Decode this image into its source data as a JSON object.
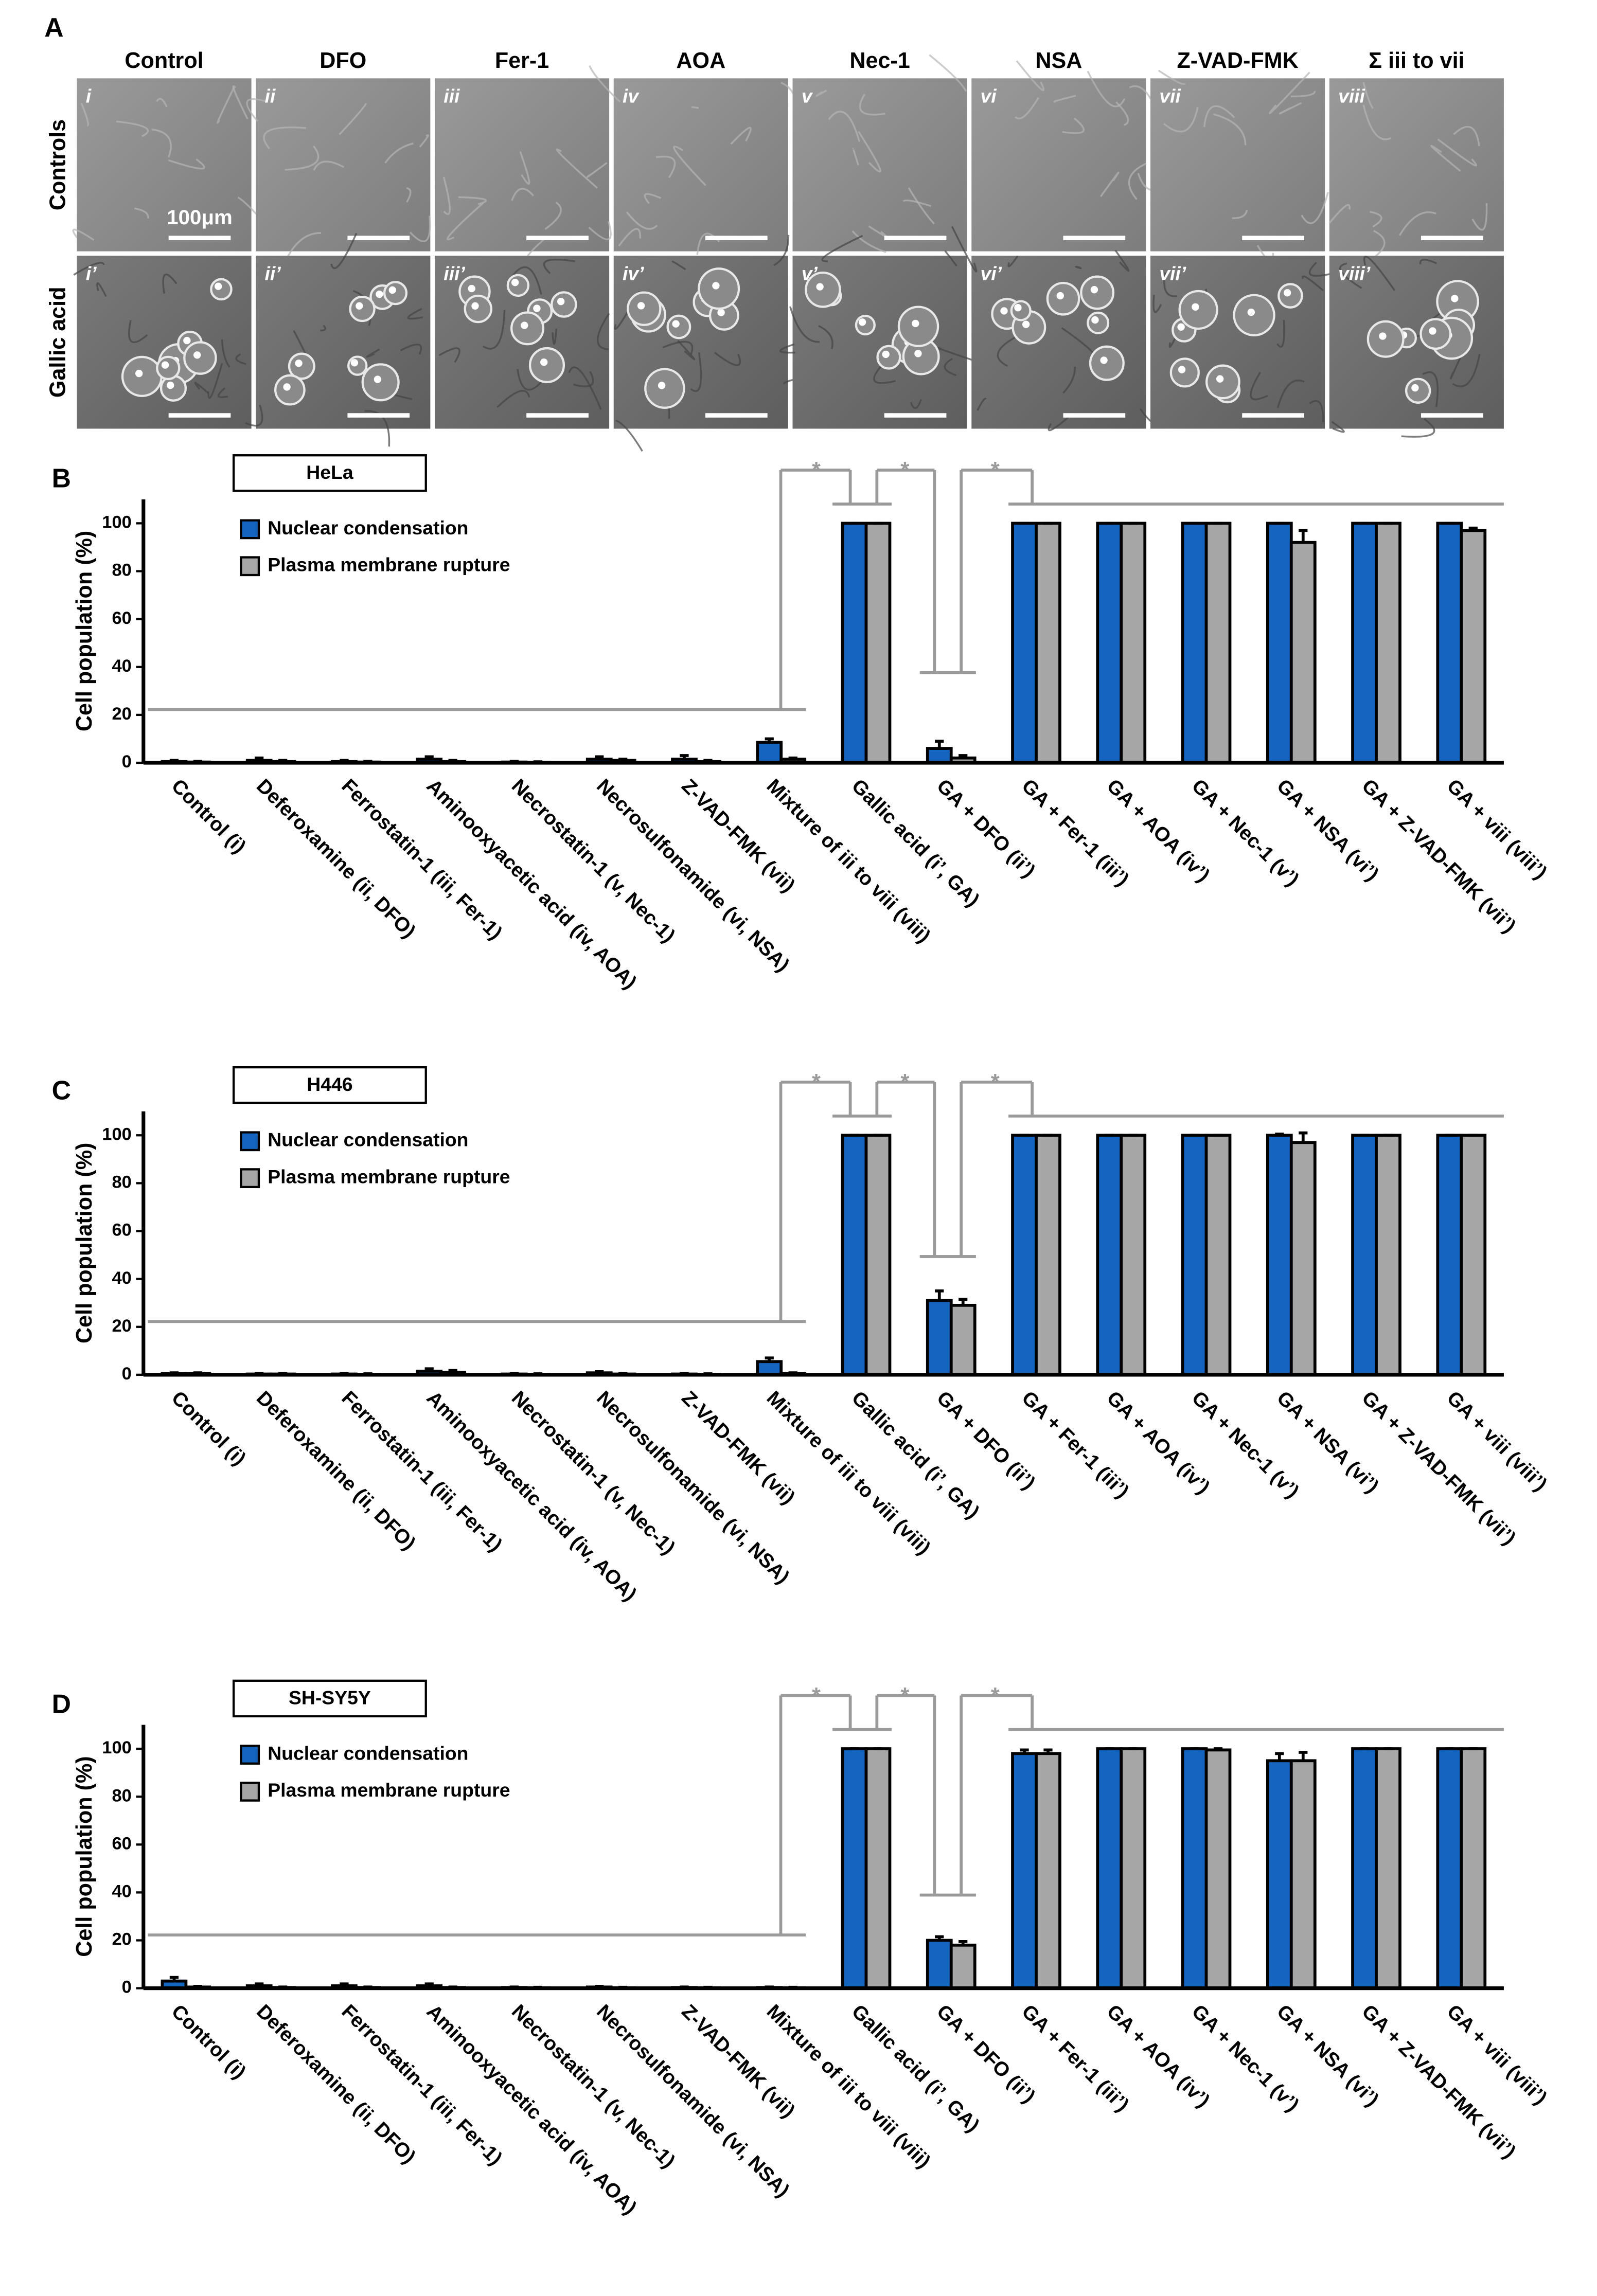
{
  "panel_a": {
    "label": "A",
    "columns": [
      "Control",
      "DFO",
      "Fer-1",
      "AOA",
      "Nec-1",
      "NSA",
      "Z-VAD-FMK",
      "Σ iii to vii"
    ],
    "rows": [
      "Controls",
      "Gallic acid"
    ],
    "cells": [
      [
        "i",
        "ii",
        "iii",
        "iv",
        "v",
        "vi",
        "vii",
        "viii"
      ],
      [
        "i’",
        "ii’",
        "iii’",
        "iv’",
        "v’",
        "vi’",
        "vii’",
        "viii’"
      ]
    ],
    "scale_bar": "100μm"
  },
  "chart_data": [
    {
      "type": "bar",
      "panel": "B",
      "title": "HeLa",
      "ylabel": "Cell population (%)",
      "categories": [
        "Control (i)",
        "Deferoxamine (ii, DFO)",
        "Ferrostatin-1 (iii, Fer-1)",
        "Aminooxyacetic acid (iv, AOA)",
        "Necrostatin-1 (v, Nec-1)",
        "Necrosulfonamide (vi, NSA)",
        "Z-VAD-FMK (vii)",
        "Mixture of iii to viii (viii)",
        "Gallic acid (i’, GA)",
        "GA + DFO (ii’)",
        "GA + Fer-1 (iii’)",
        "GA + AOA (iv’)",
        "GA + Nec-1 (v’)",
        "GA + NSA (vi’)",
        "GA + Z-VAD-FMK (vii’)",
        "GA + viii (viii’)"
      ],
      "series": [
        {
          "name": "Nuclear condensation",
          "color": "#1565c0",
          "values": [
            0.5,
            1,
            0.5,
            1.5,
            0.3,
            1.5,
            1.5,
            8.5,
            100,
            6,
            100,
            100,
            100,
            100,
            100,
            100
          ],
          "errors": [
            0.5,
            1,
            0.5,
            1,
            0.3,
            1,
            1.5,
            1.5,
            0,
            3,
            0,
            0,
            0,
            0,
            0,
            0
          ]
        },
        {
          "name": "Plasma membrane rupture",
          "color": "#a6a6a6",
          "values": [
            0.3,
            0.5,
            0.3,
            0.5,
            0.2,
            1,
            0.5,
            1.5,
            100,
            2,
            100,
            100,
            100,
            92,
            100,
            97
          ],
          "errors": [
            0.3,
            0.5,
            0.3,
            0.5,
            0.2,
            0.5,
            0.5,
            0.5,
            0,
            1,
            0,
            0,
            0,
            5,
            0,
            1
          ]
        }
      ],
      "ylim": [
        0,
        110
      ],
      "yticks": [
        0,
        20,
        40,
        60,
        80,
        100
      ],
      "legend": "upper left",
      "significance": [
        "*",
        "*",
        "*"
      ]
    },
    {
      "type": "bar",
      "panel": "C",
      "title": "H446",
      "ylabel": "Cell population (%)",
      "categories": [
        "Control (i)",
        "Deferoxamine (ii, DFO)",
        "Ferrostatin-1 (iii, Fer-1)",
        "Aminooxyacetic acid (iv, AOA)",
        "Necrostatin-1 (v, Nec-1)",
        "Necrosulfonamide (vi, NSA)",
        "Z-VAD-FMK (vii)",
        "Mixture of iii to viii (viii)",
        "Gallic acid (i’, GA)",
        "GA + DFO (ii’)",
        "GA + Fer-1 (iii’)",
        "GA + AOA (iv’)",
        "GA + Nec-1 (v’)",
        "GA + NSA (vi’)",
        "GA + Z-VAD-FMK (vii’)",
        "GA + viii (viii’)"
      ],
      "series": [
        {
          "name": "Nuclear condensation",
          "color": "#1565c0",
          "values": [
            0.5,
            0.3,
            0.3,
            1.5,
            0.3,
            0.8,
            0.3,
            5.5,
            100,
            31,
            100,
            100,
            100,
            100,
            100,
            100
          ],
          "errors": [
            0.3,
            0.2,
            0.2,
            1,
            0.2,
            0.5,
            0.2,
            1.5,
            0,
            4,
            0,
            0,
            0,
            0.5,
            0,
            0
          ]
        },
        {
          "name": "Plasma membrane rupture",
          "color": "#a6a6a6",
          "values": [
            0.5,
            0.3,
            0.2,
            1,
            0.2,
            0.3,
            0.2,
            0.5,
            100,
            29,
            100,
            100,
            100,
            97,
            100,
            100
          ],
          "errors": [
            0.3,
            0.2,
            0.2,
            0.8,
            0.2,
            0.2,
            0.2,
            0.3,
            0,
            2.5,
            0,
            0,
            0,
            4,
            0,
            0
          ]
        }
      ],
      "ylim": [
        0,
        110
      ],
      "yticks": [
        0,
        20,
        40,
        60,
        80,
        100
      ],
      "legend": "upper left",
      "significance": [
        "*",
        "*",
        "*"
      ]
    },
    {
      "type": "bar",
      "panel": "D",
      "title": "SH-SY5Y",
      "ylabel": "Cell population (%)",
      "categories": [
        "Control (i)",
        "Deferoxamine (ii, DFO)",
        "Ferrostatin-1 (iii, Fer-1)",
        "Aminooxyacetic acid (iv, AOA)",
        "Necrostatin-1 (v, Nec-1)",
        "Necrosulfonamide (vi, NSA)",
        "Z-VAD-FMK (vii)",
        "Mixture of iii to viii (viii)",
        "Gallic acid (i’, GA)",
        "GA + DFO (ii’)",
        "GA + Fer-1 (iii’)",
        "GA + AOA (iv’)",
        "GA + Nec-1 (v’)",
        "GA + NSA (vi’)",
        "GA + Z-VAD-FMK (vii’)",
        "GA + viii (viii’)"
      ],
      "series": [
        {
          "name": "Nuclear condensation",
          "color": "#1565c0",
          "values": [
            3,
            1,
            1,
            1,
            0.3,
            0.5,
            0.3,
            0.3,
            100,
            20,
            98,
            100,
            100,
            95,
            100,
            100
          ],
          "errors": [
            1.5,
            0.8,
            0.8,
            0.8,
            0.2,
            0.3,
            0.2,
            0.2,
            0,
            1.5,
            1.5,
            0,
            0,
            3,
            0,
            0
          ]
        },
        {
          "name": "Plasma membrane rupture",
          "color": "#a6a6a6",
          "values": [
            0.5,
            0.3,
            0.3,
            0.3,
            0.2,
            0.2,
            0.2,
            0.2,
            100,
            18,
            98,
            100,
            99.5,
            95,
            100,
            100
          ],
          "errors": [
            0.3,
            0.2,
            0.2,
            0.2,
            0.2,
            0.2,
            0.2,
            0.2,
            0,
            1.5,
            1.5,
            0,
            0.5,
            3.5,
            0,
            0
          ]
        }
      ],
      "ylim": [
        0,
        110
      ],
      "yticks": [
        0,
        20,
        40,
        60,
        80,
        100
      ],
      "legend": "upper left",
      "significance": [
        "*",
        "*",
        "*"
      ]
    }
  ]
}
